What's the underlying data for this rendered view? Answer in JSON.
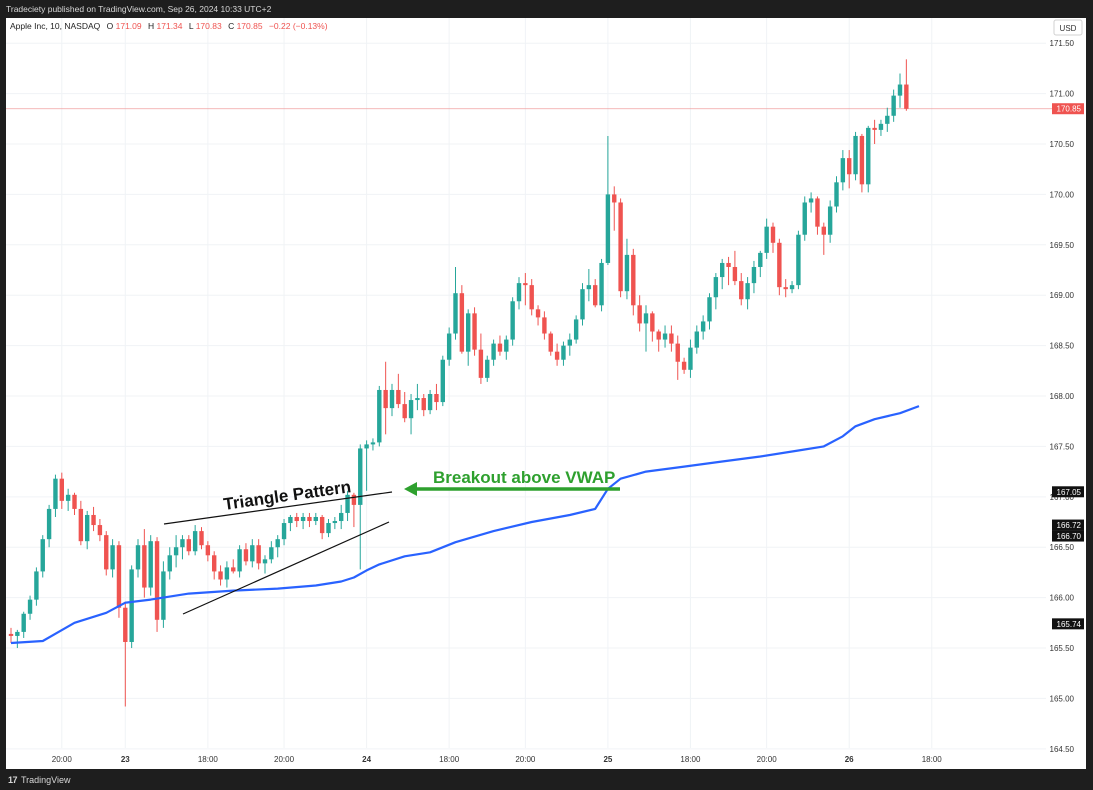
{
  "header": {
    "publisher_line": "Tradeciety published on TradingView.com, Sep 26, 2024 10:33 UTC+2"
  },
  "legend": {
    "symbol": "Apple Inc, 10, NASDAQ",
    "open_label": "O",
    "open": "171.09",
    "high_label": "H",
    "high": "171.34",
    "low_label": "L",
    "low": "170.83",
    "close_label": "C",
    "close": "170.85",
    "change": "−0.22 (−0.13%)"
  },
  "currency": "USD",
  "footer": {
    "logo": "17",
    "brand": "TradingView"
  },
  "colors": {
    "up": "#26a69a",
    "down": "#ef5350",
    "vwap": "#2962ff",
    "annotation_arrow": "#2ea02e",
    "price_line": "#f0a0a0",
    "background": "#ffffff"
  },
  "annotations": {
    "triangle_label": "Triangle Pattern",
    "breakout_label": "Breakout above VWAP"
  },
  "price_tags": [
    {
      "value": 170.85,
      "label": "170.85",
      "style": "current"
    },
    {
      "value": 167.05,
      "label": "167.05",
      "style": "dark"
    },
    {
      "value": 166.72,
      "label": "166.72",
      "style": "dark"
    },
    {
      "value": 166.7,
      "label": "166.70",
      "style": "dark"
    },
    {
      "value": 165.74,
      "label": "165.74",
      "style": "dark"
    }
  ],
  "chart_data": {
    "type": "candlestick",
    "symbol": "Apple Inc, 10, NASDAQ",
    "ylim": [
      164.3,
      171.75
    ],
    "y_ticks": [
      "164.50",
      "165.00",
      "165.50",
      "166.00",
      "166.50",
      "167.00",
      "167.50",
      "168.00",
      "168.50",
      "169.00",
      "169.50",
      "170.00",
      "170.50",
      "171.00",
      "171.50"
    ],
    "x_ticks": [
      {
        "label": "20:00",
        "bar": 8,
        "bold": false
      },
      {
        "label": "23",
        "bar": 18,
        "bold": true
      },
      {
        "label": "18:00",
        "bar": 31,
        "bold": false
      },
      {
        "label": "20:00",
        "bar": 43,
        "bold": false
      },
      {
        "label": "24",
        "bar": 56,
        "bold": true
      },
      {
        "label": "18:00",
        "bar": 69,
        "bold": false
      },
      {
        "label": "20:00",
        "bar": 81,
        "bold": false
      },
      {
        "label": "25",
        "bar": 94,
        "bold": true
      },
      {
        "label": "18:00",
        "bar": 107,
        "bold": false
      },
      {
        "label": "20:00",
        "bar": 119,
        "bold": false
      },
      {
        "label": "26",
        "bar": 132,
        "bold": true
      },
      {
        "label": "18:00",
        "bar": 145,
        "bold": false
      }
    ],
    "ohlc": [
      [
        165.64,
        165.7,
        165.55,
        165.62
      ],
      [
        165.62,
        165.68,
        165.5,
        165.66
      ],
      [
        165.66,
        165.86,
        165.6,
        165.84
      ],
      [
        165.84,
        166.02,
        165.78,
        165.98
      ],
      [
        165.98,
        166.3,
        165.92,
        166.26
      ],
      [
        166.26,
        166.62,
        166.2,
        166.58
      ],
      [
        166.58,
        166.92,
        166.5,
        166.88
      ],
      [
        166.88,
        167.22,
        166.8,
        167.18
      ],
      [
        167.18,
        167.24,
        166.88,
        166.96
      ],
      [
        166.96,
        167.08,
        166.86,
        167.02
      ],
      [
        167.02,
        167.04,
        166.82,
        166.88
      ],
      [
        166.88,
        166.96,
        166.52,
        166.56
      ],
      [
        166.56,
        166.86,
        166.48,
        166.82
      ],
      [
        166.82,
        166.9,
        166.66,
        166.72
      ],
      [
        166.72,
        166.78,
        166.56,
        166.62
      ],
      [
        166.62,
        166.66,
        166.22,
        166.28
      ],
      [
        166.28,
        166.58,
        166.2,
        166.52
      ],
      [
        166.52,
        166.56,
        165.8,
        165.9
      ],
      [
        165.9,
        165.96,
        164.92,
        165.56
      ],
      [
        165.56,
        166.32,
        165.5,
        166.28
      ],
      [
        166.28,
        166.58,
        166.2,
        166.52
      ],
      [
        166.52,
        166.68,
        166.0,
        166.1
      ],
      [
        166.1,
        166.62,
        166.02,
        166.56
      ],
      [
        166.56,
        166.6,
        165.66,
        165.78
      ],
      [
        165.78,
        166.36,
        165.7,
        166.26
      ],
      [
        166.26,
        166.5,
        166.18,
        166.42
      ],
      [
        166.42,
        166.62,
        166.3,
        166.5
      ],
      [
        166.5,
        166.62,
        166.38,
        166.58
      ],
      [
        166.58,
        166.62,
        166.42,
        166.46
      ],
      [
        166.46,
        166.72,
        166.42,
        166.66
      ],
      [
        166.66,
        166.7,
        166.48,
        166.52
      ],
      [
        166.52,
        166.56,
        166.36,
        166.42
      ],
      [
        166.42,
        166.46,
        166.18,
        166.26
      ],
      [
        166.26,
        166.32,
        166.12,
        166.18
      ],
      [
        166.18,
        166.36,
        166.1,
        166.3
      ],
      [
        166.3,
        166.38,
        166.24,
        166.26
      ],
      [
        166.26,
        166.52,
        166.2,
        166.48
      ],
      [
        166.48,
        166.54,
        166.32,
        166.36
      ],
      [
        166.36,
        166.58,
        166.3,
        166.52
      ],
      [
        166.52,
        166.58,
        166.28,
        166.34
      ],
      [
        166.34,
        166.42,
        166.24,
        166.38
      ],
      [
        166.38,
        166.56,
        166.34,
        166.5
      ],
      [
        166.5,
        166.62,
        166.4,
        166.58
      ],
      [
        166.58,
        166.78,
        166.52,
        166.74
      ],
      [
        166.74,
        166.82,
        166.66,
        166.8
      ],
      [
        166.8,
        166.84,
        166.7,
        166.76
      ],
      [
        166.76,
        166.84,
        166.68,
        166.8
      ],
      [
        166.8,
        166.84,
        166.7,
        166.76
      ],
      [
        166.76,
        166.84,
        166.72,
        166.8
      ],
      [
        166.8,
        166.82,
        166.58,
        166.64
      ],
      [
        166.64,
        166.78,
        166.6,
        166.74
      ],
      [
        166.74,
        166.8,
        166.68,
        166.76
      ],
      [
        166.76,
        166.92,
        166.68,
        166.84
      ],
      [
        166.84,
        167.06,
        166.76,
        167.02
      ],
      [
        167.02,
        167.04,
        166.7,
        166.92
      ],
      [
        166.92,
        167.52,
        166.28,
        167.48
      ],
      [
        167.48,
        167.56,
        167.06,
        167.52
      ],
      [
        167.52,
        167.58,
        167.46,
        167.54
      ],
      [
        167.54,
        168.1,
        167.5,
        168.06
      ],
      [
        168.06,
        168.34,
        167.62,
        167.88
      ],
      [
        167.88,
        168.12,
        167.8,
        168.06
      ],
      [
        168.06,
        168.22,
        167.88,
        167.92
      ],
      [
        167.92,
        168.04,
        167.74,
        167.78
      ],
      [
        167.78,
        168.02,
        167.62,
        167.96
      ],
      [
        167.96,
        168.12,
        167.86,
        167.98
      ],
      [
        167.98,
        168.02,
        167.8,
        167.86
      ],
      [
        167.86,
        168.06,
        167.82,
        168.02
      ],
      [
        168.02,
        168.12,
        167.86,
        167.94
      ],
      [
        167.94,
        168.4,
        167.9,
        168.36
      ],
      [
        168.36,
        168.68,
        168.3,
        168.62
      ],
      [
        168.62,
        169.28,
        168.56,
        169.02
      ],
      [
        169.02,
        169.1,
        168.42,
        168.44
      ],
      [
        168.44,
        168.86,
        168.3,
        168.82
      ],
      [
        168.82,
        168.88,
        168.4,
        168.46
      ],
      [
        168.46,
        168.62,
        168.12,
        168.18
      ],
      [
        168.18,
        168.4,
        168.14,
        168.36
      ],
      [
        168.36,
        168.56,
        168.3,
        168.52
      ],
      [
        168.52,
        168.6,
        168.4,
        168.44
      ],
      [
        168.44,
        168.6,
        168.36,
        168.56
      ],
      [
        168.56,
        168.98,
        168.5,
        168.94
      ],
      [
        168.94,
        169.18,
        168.86,
        169.12
      ],
      [
        169.12,
        169.22,
        168.9,
        169.1
      ],
      [
        169.1,
        169.16,
        168.8,
        168.86
      ],
      [
        168.86,
        168.9,
        168.7,
        168.78
      ],
      [
        168.78,
        168.84,
        168.56,
        168.62
      ],
      [
        168.62,
        168.64,
        168.4,
        168.44
      ],
      [
        168.44,
        168.52,
        168.3,
        168.36
      ],
      [
        168.36,
        168.54,
        168.3,
        168.5
      ],
      [
        168.5,
        168.62,
        168.4,
        168.56
      ],
      [
        168.56,
        168.8,
        168.52,
        168.76
      ],
      [
        168.76,
        169.12,
        168.7,
        169.06
      ],
      [
        169.06,
        169.26,
        168.94,
        169.1
      ],
      [
        169.1,
        169.16,
        168.88,
        168.9
      ],
      [
        168.9,
        169.36,
        168.84,
        169.32
      ],
      [
        169.32,
        170.58,
        169.3,
        170.0
      ],
      [
        170.0,
        170.08,
        169.64,
        169.92
      ],
      [
        169.92,
        169.96,
        168.98,
        169.04
      ],
      [
        169.04,
        169.56,
        168.96,
        169.4
      ],
      [
        169.4,
        169.46,
        168.8,
        168.9
      ],
      [
        168.9,
        169.0,
        168.64,
        168.72
      ],
      [
        168.72,
        168.9,
        168.44,
        168.82
      ],
      [
        168.82,
        168.84,
        168.54,
        168.64
      ],
      [
        168.64,
        168.66,
        168.44,
        168.56
      ],
      [
        168.56,
        168.7,
        168.48,
        168.62
      ],
      [
        168.62,
        168.7,
        168.44,
        168.52
      ],
      [
        168.52,
        168.6,
        168.16,
        168.34
      ],
      [
        168.34,
        168.38,
        168.22,
        168.26
      ],
      [
        168.26,
        168.56,
        168.18,
        168.48
      ],
      [
        168.48,
        168.7,
        168.42,
        168.64
      ],
      [
        168.64,
        168.8,
        168.56,
        168.74
      ],
      [
        168.74,
        169.02,
        168.66,
        168.98
      ],
      [
        168.98,
        169.22,
        168.86,
        169.18
      ],
      [
        169.18,
        169.36,
        169.06,
        169.32
      ],
      [
        169.32,
        169.38,
        169.1,
        169.28
      ],
      [
        169.28,
        169.44,
        169.1,
        169.14
      ],
      [
        169.14,
        169.22,
        168.9,
        168.96
      ],
      [
        168.96,
        169.18,
        168.86,
        169.12
      ],
      [
        169.12,
        169.34,
        169.02,
        169.28
      ],
      [
        169.28,
        169.44,
        169.18,
        169.42
      ],
      [
        169.42,
        169.76,
        169.36,
        169.68
      ],
      [
        169.68,
        169.72,
        169.42,
        169.52
      ],
      [
        169.52,
        169.56,
        169.0,
        169.08
      ],
      [
        169.08,
        169.16,
        168.98,
        169.06
      ],
      [
        169.06,
        169.14,
        169.02,
        169.1
      ],
      [
        169.1,
        169.64,
        169.06,
        169.6
      ],
      [
        169.6,
        169.98,
        169.54,
        169.92
      ],
      [
        169.92,
        170.02,
        169.82,
        169.96
      ],
      [
        169.96,
        169.98,
        169.6,
        169.68
      ],
      [
        169.68,
        169.72,
        169.4,
        169.6
      ],
      [
        169.6,
        169.94,
        169.52,
        169.88
      ],
      [
        169.88,
        170.18,
        169.82,
        170.12
      ],
      [
        170.12,
        170.44,
        170.04,
        170.36
      ],
      [
        170.36,
        170.44,
        170.06,
        170.2
      ],
      [
        170.2,
        170.62,
        170.14,
        170.58
      ],
      [
        170.58,
        170.6,
        170.02,
        170.1
      ],
      [
        170.1,
        170.68,
        170.02,
        170.66
      ],
      [
        170.66,
        170.74,
        170.5,
        170.64
      ],
      [
        170.64,
        170.74,
        170.58,
        170.7
      ],
      [
        170.7,
        170.86,
        170.62,
        170.78
      ],
      [
        170.78,
        171.04,
        170.72,
        170.98
      ],
      [
        170.98,
        171.2,
        170.86,
        171.09
      ],
      [
        171.09,
        171.34,
        170.83,
        170.85
      ]
    ],
    "vwap": [
      [
        0,
        165.55
      ],
      [
        5,
        165.57
      ],
      [
        10,
        165.75
      ],
      [
        15,
        165.85
      ],
      [
        18,
        165.95
      ],
      [
        22,
        165.98
      ],
      [
        28,
        166.04
      ],
      [
        35,
        166.07
      ],
      [
        42,
        166.09
      ],
      [
        48,
        166.12
      ],
      [
        52,
        166.16
      ],
      [
        54,
        166.2
      ],
      [
        56,
        166.27
      ],
      [
        58,
        166.33
      ],
      [
        62,
        166.41
      ],
      [
        66,
        166.45
      ],
      [
        70,
        166.55
      ],
      [
        76,
        166.66
      ],
      [
        82,
        166.75
      ],
      [
        88,
        166.82
      ],
      [
        92,
        166.88
      ],
      [
        94,
        167.08
      ],
      [
        96,
        167.18
      ],
      [
        100,
        167.25
      ],
      [
        106,
        167.3
      ],
      [
        112,
        167.35
      ],
      [
        118,
        167.4
      ],
      [
        124,
        167.46
      ],
      [
        128,
        167.5
      ],
      [
        131,
        167.6
      ],
      [
        133,
        167.7
      ],
      [
        136,
        167.77
      ],
      [
        140,
        167.83
      ],
      [
        143,
        167.9
      ]
    ]
  }
}
